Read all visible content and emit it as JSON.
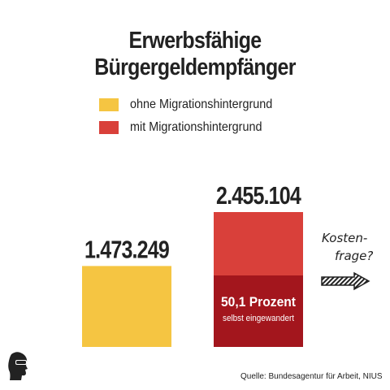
{
  "colors": {
    "ohne": "#f5c542",
    "mit": "#d9403a",
    "eingewandert": "#a3161d",
    "text": "#222222"
  },
  "chart_data": {
    "type": "bar",
    "title": "Erwerbsfähige Bürgergeldempfänger",
    "legend_position": "top",
    "series": [
      {
        "name": "ohne Migrationshintergrund",
        "value": 1473249,
        "label": "1.473.249"
      },
      {
        "name": "mit Migrationshintergrund",
        "value": 2455104,
        "label": "2.455.104",
        "segment": {
          "share_percent": 50.1,
          "label": "50,1 Prozent",
          "sublabel": "selbst eingewandert"
        }
      }
    ],
    "ylim": [
      0,
      2455104
    ],
    "grid": false
  },
  "annotation": {
    "line1": "Kosten-",
    "line2": "frage?",
    "icon": "arrow-right-icon"
  },
  "source": "Quelle:  Bundesagentur für Arbeit, NIUS",
  "logo": {
    "icon": "head-silhouette-icon"
  }
}
